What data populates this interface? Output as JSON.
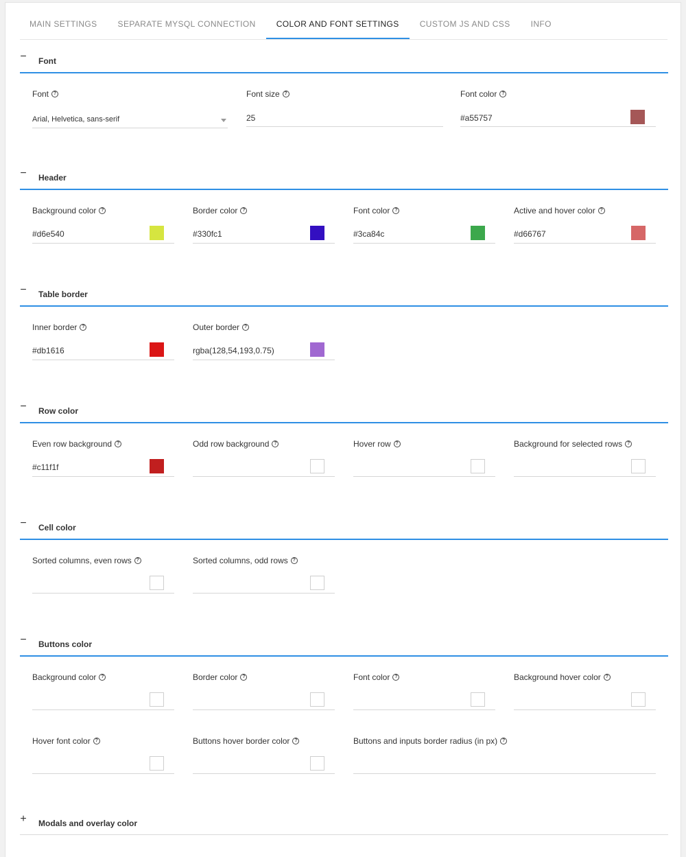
{
  "tabs": [
    {
      "label": "MAIN SETTINGS",
      "active": false
    },
    {
      "label": "SEPARATE MYSQL CONNECTION",
      "active": false
    },
    {
      "label": "COLOR AND FONT SETTINGS",
      "active": true
    },
    {
      "label": "CUSTOM JS AND CSS",
      "active": false
    },
    {
      "label": "INFO",
      "active": false
    }
  ],
  "font": {
    "title": "Font",
    "font": {
      "label": "Font",
      "value": "Arial, Helvetica, sans-serif"
    },
    "font_size": {
      "label": "Font size",
      "value": "25"
    },
    "font_color": {
      "label": "Font color",
      "value": "#a55757",
      "color": "#a55757"
    }
  },
  "header": {
    "title": "Header",
    "background_color": {
      "label": "Background color",
      "value": "#d6e540",
      "color": "#d6e540"
    },
    "border_color": {
      "label": "Border color",
      "value": "#330fc1",
      "color": "#330fc1"
    },
    "font_color": {
      "label": "Font color",
      "value": "#3ca84c",
      "color": "#3ca84c"
    },
    "active_hover_color": {
      "label": "Active and hover color",
      "value": "#d66767",
      "color": "#d66767"
    }
  },
  "table_border": {
    "title": "Table border",
    "inner_border": {
      "label": "Inner border",
      "value": "#db1616",
      "color": "#db1616"
    },
    "outer_border": {
      "label": "Outer border",
      "value": "rgba(128,54,193,0.75)",
      "color": "rgba(128,54,193,0.75)"
    }
  },
  "row_color": {
    "title": "Row color",
    "even_row_background": {
      "label": "Even row background",
      "value": "#c11f1f",
      "color": "#c11f1f"
    },
    "odd_row_background": {
      "label": "Odd row background",
      "value": ""
    },
    "hover_row": {
      "label": "Hover row",
      "value": ""
    },
    "selected_rows_background": {
      "label": "Background for selected rows",
      "value": ""
    }
  },
  "cell_color": {
    "title": "Cell color",
    "sorted_even": {
      "label": "Sorted columns, even rows",
      "value": ""
    },
    "sorted_odd": {
      "label": "Sorted columns, odd rows",
      "value": ""
    }
  },
  "buttons_color": {
    "title": "Buttons color",
    "background_color": {
      "label": "Background color",
      "value": ""
    },
    "border_color": {
      "label": "Border color",
      "value": ""
    },
    "font_color": {
      "label": "Font color",
      "value": ""
    },
    "background_hover_color": {
      "label": "Background hover color",
      "value": ""
    },
    "hover_font_color": {
      "label": "Hover font color",
      "value": ""
    },
    "hover_border_color": {
      "label": "Buttons hover border color",
      "value": ""
    },
    "border_radius": {
      "label": "Buttons and inputs border radius (in px)",
      "value": ""
    }
  },
  "modals": {
    "title": "Modals and overlay color"
  },
  "icons": {
    "collapse": "minus-icon",
    "expand": "plus-icon",
    "help": "question-circle-icon",
    "dropdown": "caret-down-icon"
  },
  "help_glyph": "?",
  "toggle_open": "−",
  "toggle_closed": "+"
}
